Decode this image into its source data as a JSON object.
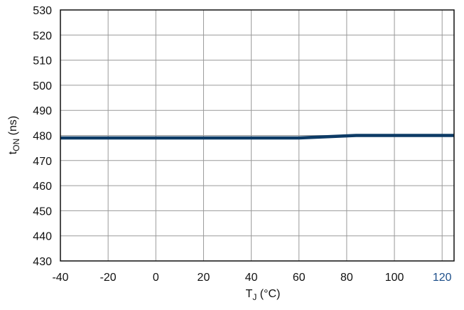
{
  "chart_data": {
    "type": "line",
    "title": "",
    "xlabel": {
      "main": "T",
      "sub": "J",
      "unit": " (°C)"
    },
    "ylabel": {
      "main": "t",
      "sub": "ON",
      "unit": " (ns)"
    },
    "xlim": [
      -40,
      125
    ],
    "ylim": [
      430,
      530
    ],
    "x_ticks": [
      -40,
      -20,
      0,
      20,
      40,
      60,
      80,
      100,
      120
    ],
    "x_tick_labels": [
      "-40",
      "-20",
      "0",
      "20",
      "40",
      "60",
      "80",
      "100",
      "120"
    ],
    "y_ticks": [
      430,
      440,
      450,
      460,
      470,
      480,
      490,
      500,
      510,
      520,
      530
    ],
    "y_tick_labels": [
      "430",
      "440",
      "450",
      "460",
      "470",
      "480",
      "490",
      "500",
      "510",
      "520",
      "530"
    ],
    "grid": true,
    "series": [
      {
        "x": [
          -40,
          60,
          84,
          125
        ],
        "y": [
          479,
          479,
          480,
          480
        ]
      }
    ],
    "colors": {
      "series": "#0d3b66",
      "grid": "#9a9a9a",
      "axis": "#111111",
      "last_tick": "#1d4f8a"
    }
  }
}
